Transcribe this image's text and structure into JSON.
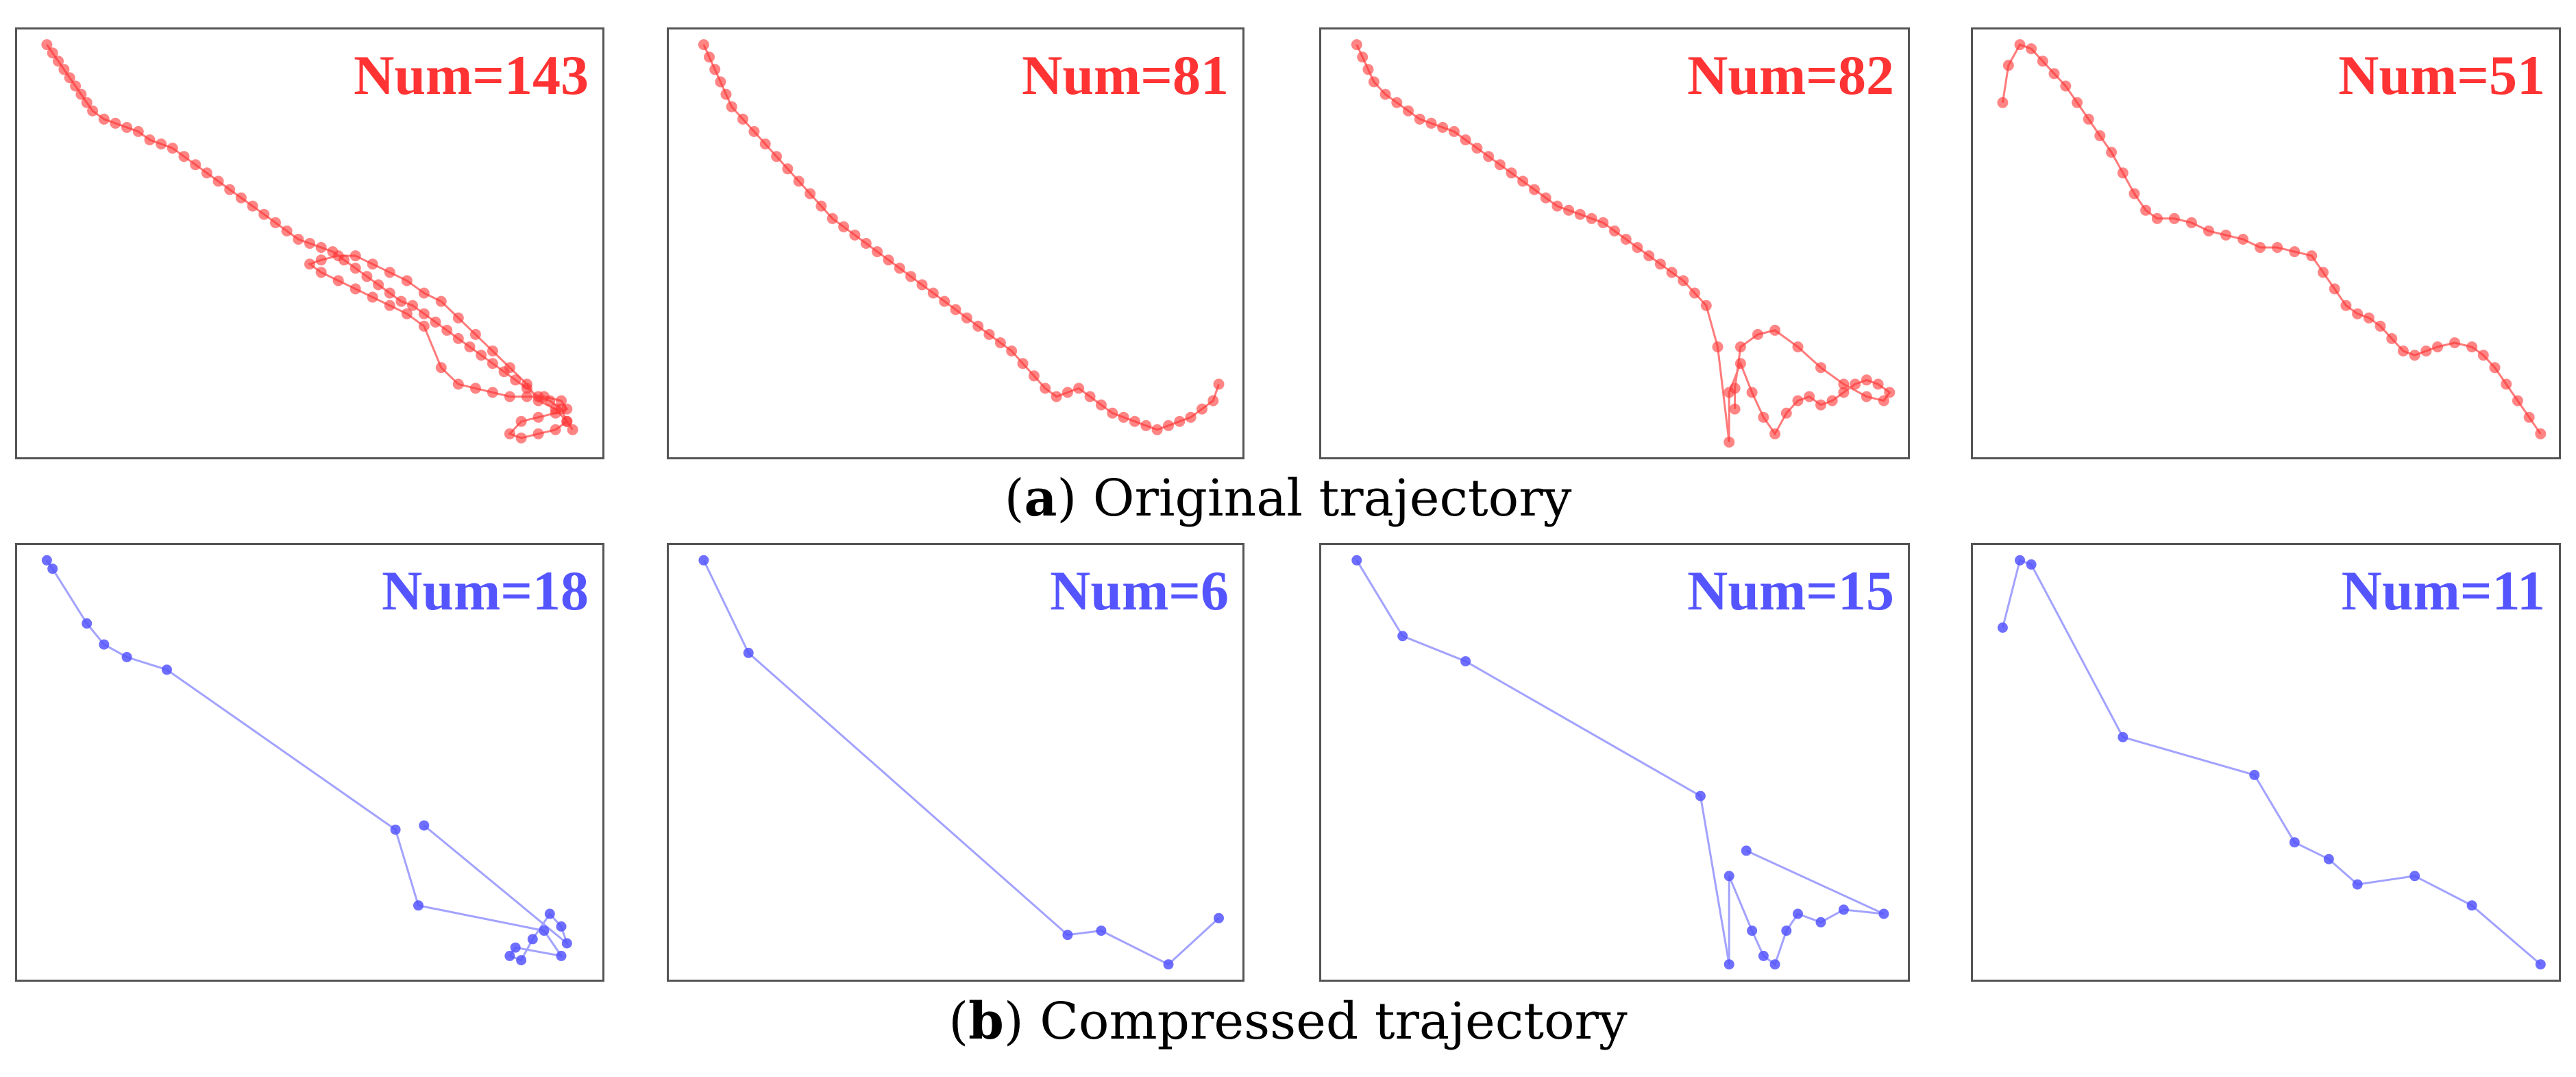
{
  "colors": {
    "original": "#ff3333",
    "compressed": "#5555ff"
  },
  "captions": {
    "original": {
      "letter": "a",
      "text": " Original trajectory"
    },
    "compressed": {
      "letter": "b",
      "text": " Compressed trajectory"
    }
  },
  "chart_data": [
    {
      "type": "line",
      "group": "original",
      "label": "Num=143",
      "x_range": [
        0,
        1
      ],
      "y_range": [
        0,
        1
      ],
      "grid": false,
      "points": [
        [
          0.04,
          0.02
        ],
        [
          0.05,
          0.04
        ],
        [
          0.06,
          0.06
        ],
        [
          0.07,
          0.08
        ],
        [
          0.08,
          0.1
        ],
        [
          0.09,
          0.12
        ],
        [
          0.1,
          0.14
        ],
        [
          0.11,
          0.16
        ],
        [
          0.12,
          0.18
        ],
        [
          0.14,
          0.2
        ],
        [
          0.16,
          0.21
        ],
        [
          0.18,
          0.22
        ],
        [
          0.2,
          0.23
        ],
        [
          0.22,
          0.25
        ],
        [
          0.24,
          0.26
        ],
        [
          0.26,
          0.27
        ],
        [
          0.28,
          0.29
        ],
        [
          0.3,
          0.31
        ],
        [
          0.32,
          0.33
        ],
        [
          0.34,
          0.35
        ],
        [
          0.36,
          0.37
        ],
        [
          0.38,
          0.39
        ],
        [
          0.4,
          0.41
        ],
        [
          0.42,
          0.43
        ],
        [
          0.44,
          0.45
        ],
        [
          0.46,
          0.47
        ],
        [
          0.48,
          0.49
        ],
        [
          0.5,
          0.5
        ],
        [
          0.52,
          0.51
        ],
        [
          0.54,
          0.52
        ],
        [
          0.56,
          0.54
        ],
        [
          0.58,
          0.56
        ],
        [
          0.6,
          0.58
        ],
        [
          0.62,
          0.6
        ],
        [
          0.64,
          0.62
        ],
        [
          0.66,
          0.64
        ],
        [
          0.68,
          0.65
        ],
        [
          0.7,
          0.67
        ],
        [
          0.72,
          0.69
        ],
        [
          0.74,
          0.71
        ],
        [
          0.76,
          0.73
        ],
        [
          0.78,
          0.75
        ],
        [
          0.8,
          0.77
        ],
        [
          0.82,
          0.79
        ],
        [
          0.84,
          0.81
        ],
        [
          0.86,
          0.83
        ],
        [
          0.88,
          0.85
        ],
        [
          0.9,
          0.87
        ],
        [
          0.92,
          0.88
        ],
        [
          0.94,
          0.9
        ],
        [
          0.95,
          0.93
        ],
        [
          0.93,
          0.95
        ],
        [
          0.9,
          0.96
        ],
        [
          0.87,
          0.97
        ],
        [
          0.85,
          0.96
        ],
        [
          0.87,
          0.93
        ],
        [
          0.9,
          0.92
        ],
        [
          0.93,
          0.91
        ],
        [
          0.95,
          0.9
        ],
        [
          0.94,
          0.88
        ],
        [
          0.91,
          0.87
        ],
        [
          0.88,
          0.87
        ],
        [
          0.85,
          0.87
        ],
        [
          0.82,
          0.86
        ],
        [
          0.79,
          0.85
        ],
        [
          0.76,
          0.84
        ],
        [
          0.73,
          0.8
        ],
        [
          0.7,
          0.7
        ],
        [
          0.67,
          0.67
        ],
        [
          0.64,
          0.65
        ],
        [
          0.61,
          0.63
        ],
        [
          0.58,
          0.61
        ],
        [
          0.55,
          0.59
        ],
        [
          0.52,
          0.57
        ],
        [
          0.5,
          0.55
        ],
        [
          0.52,
          0.54
        ],
        [
          0.55,
          0.53
        ],
        [
          0.58,
          0.53
        ],
        [
          0.61,
          0.55
        ],
        [
          0.64,
          0.57
        ],
        [
          0.67,
          0.59
        ],
        [
          0.7,
          0.62
        ],
        [
          0.73,
          0.64
        ],
        [
          0.76,
          0.68
        ],
        [
          0.79,
          0.72
        ],
        [
          0.82,
          0.76
        ],
        [
          0.85,
          0.8
        ],
        [
          0.88,
          0.84
        ],
        [
          0.9,
          0.88
        ],
        [
          0.93,
          0.9
        ],
        [
          0.95,
          0.93
        ],
        [
          0.96,
          0.95
        ]
      ]
    },
    {
      "type": "line",
      "group": "original",
      "label": "Num=81",
      "x_range": [
        0,
        1
      ],
      "y_range": [
        0,
        1
      ],
      "grid": false,
      "points": [
        [
          0.05,
          0.02
        ],
        [
          0.06,
          0.05
        ],
        [
          0.07,
          0.08
        ],
        [
          0.08,
          0.11
        ],
        [
          0.09,
          0.14
        ],
        [
          0.1,
          0.17
        ],
        [
          0.12,
          0.2
        ],
        [
          0.14,
          0.23
        ],
        [
          0.16,
          0.26
        ],
        [
          0.18,
          0.29
        ],
        [
          0.2,
          0.32
        ],
        [
          0.22,
          0.35
        ],
        [
          0.24,
          0.38
        ],
        [
          0.26,
          0.41
        ],
        [
          0.28,
          0.44
        ],
        [
          0.3,
          0.46
        ],
        [
          0.32,
          0.48
        ],
        [
          0.34,
          0.5
        ],
        [
          0.36,
          0.52
        ],
        [
          0.38,
          0.54
        ],
        [
          0.4,
          0.56
        ],
        [
          0.42,
          0.58
        ],
        [
          0.44,
          0.6
        ],
        [
          0.46,
          0.62
        ],
        [
          0.48,
          0.64
        ],
        [
          0.5,
          0.66
        ],
        [
          0.52,
          0.68
        ],
        [
          0.54,
          0.7
        ],
        [
          0.56,
          0.72
        ],
        [
          0.58,
          0.74
        ],
        [
          0.6,
          0.76
        ],
        [
          0.62,
          0.79
        ],
        [
          0.64,
          0.82
        ],
        [
          0.66,
          0.85
        ],
        [
          0.68,
          0.87
        ],
        [
          0.7,
          0.86
        ],
        [
          0.72,
          0.85
        ],
        [
          0.74,
          0.87
        ],
        [
          0.76,
          0.89
        ],
        [
          0.78,
          0.91
        ],
        [
          0.8,
          0.92
        ],
        [
          0.82,
          0.93
        ],
        [
          0.84,
          0.94
        ],
        [
          0.86,
          0.95
        ],
        [
          0.88,
          0.94
        ],
        [
          0.9,
          0.93
        ],
        [
          0.92,
          0.92
        ],
        [
          0.94,
          0.9
        ],
        [
          0.96,
          0.88
        ],
        [
          0.97,
          0.84
        ]
      ]
    },
    {
      "type": "line",
      "group": "original",
      "label": "Num=82",
      "x_range": [
        0,
        1
      ],
      "y_range": [
        0,
        1
      ],
      "grid": false,
      "points": [
        [
          0.05,
          0.02
        ],
        [
          0.06,
          0.05
        ],
        [
          0.07,
          0.08
        ],
        [
          0.08,
          0.11
        ],
        [
          0.1,
          0.14
        ],
        [
          0.12,
          0.16
        ],
        [
          0.14,
          0.18
        ],
        [
          0.16,
          0.2
        ],
        [
          0.18,
          0.21
        ],
        [
          0.2,
          0.22
        ],
        [
          0.22,
          0.23
        ],
        [
          0.24,
          0.25
        ],
        [
          0.26,
          0.27
        ],
        [
          0.28,
          0.29
        ],
        [
          0.3,
          0.31
        ],
        [
          0.32,
          0.33
        ],
        [
          0.34,
          0.35
        ],
        [
          0.36,
          0.37
        ],
        [
          0.38,
          0.39
        ],
        [
          0.4,
          0.41
        ],
        [
          0.42,
          0.42
        ],
        [
          0.44,
          0.43
        ],
        [
          0.46,
          0.44
        ],
        [
          0.48,
          0.45
        ],
        [
          0.5,
          0.47
        ],
        [
          0.52,
          0.49
        ],
        [
          0.54,
          0.51
        ],
        [
          0.56,
          0.53
        ],
        [
          0.58,
          0.55
        ],
        [
          0.6,
          0.57
        ],
        [
          0.62,
          0.59
        ],
        [
          0.64,
          0.62
        ],
        [
          0.66,
          0.65
        ],
        [
          0.68,
          0.75
        ],
        [
          0.7,
          0.98
        ],
        [
          0.7,
          0.86
        ],
        [
          0.72,
          0.79
        ],
        [
          0.74,
          0.86
        ],
        [
          0.76,
          0.92
        ],
        [
          0.78,
          0.96
        ],
        [
          0.8,
          0.91
        ],
        [
          0.82,
          0.88
        ],
        [
          0.84,
          0.87
        ],
        [
          0.86,
          0.89
        ],
        [
          0.88,
          0.88
        ],
        [
          0.9,
          0.86
        ],
        [
          0.92,
          0.84
        ],
        [
          0.94,
          0.83
        ],
        [
          0.96,
          0.84
        ],
        [
          0.98,
          0.86
        ],
        [
          0.97,
          0.88
        ],
        [
          0.94,
          0.87
        ],
        [
          0.9,
          0.84
        ],
        [
          0.86,
          0.8
        ],
        [
          0.82,
          0.75
        ],
        [
          0.78,
          0.71
        ],
        [
          0.75,
          0.72
        ],
        [
          0.72,
          0.75
        ],
        [
          0.71,
          0.85
        ],
        [
          0.71,
          0.9
        ]
      ]
    },
    {
      "type": "line",
      "group": "original",
      "label": "Num=51",
      "x_range": [
        0,
        1
      ],
      "y_range": [
        0,
        1
      ],
      "grid": false,
      "points": [
        [
          0.04,
          0.16
        ],
        [
          0.05,
          0.07
        ],
        [
          0.07,
          0.02
        ],
        [
          0.09,
          0.03
        ],
        [
          0.11,
          0.06
        ],
        [
          0.13,
          0.09
        ],
        [
          0.15,
          0.12
        ],
        [
          0.17,
          0.16
        ],
        [
          0.19,
          0.2
        ],
        [
          0.21,
          0.24
        ],
        [
          0.23,
          0.28
        ],
        [
          0.25,
          0.33
        ],
        [
          0.27,
          0.38
        ],
        [
          0.29,
          0.42
        ],
        [
          0.31,
          0.44
        ],
        [
          0.34,
          0.44
        ],
        [
          0.37,
          0.45
        ],
        [
          0.4,
          0.47
        ],
        [
          0.43,
          0.48
        ],
        [
          0.46,
          0.49
        ],
        [
          0.49,
          0.51
        ],
        [
          0.52,
          0.51
        ],
        [
          0.55,
          0.52
        ],
        [
          0.58,
          0.53
        ],
        [
          0.6,
          0.57
        ],
        [
          0.62,
          0.61
        ],
        [
          0.64,
          0.65
        ],
        [
          0.66,
          0.67
        ],
        [
          0.68,
          0.68
        ],
        [
          0.7,
          0.7
        ],
        [
          0.72,
          0.73
        ],
        [
          0.74,
          0.76
        ],
        [
          0.76,
          0.77
        ],
        [
          0.78,
          0.76
        ],
        [
          0.8,
          0.75
        ],
        [
          0.83,
          0.74
        ],
        [
          0.86,
          0.75
        ],
        [
          0.88,
          0.77
        ],
        [
          0.9,
          0.8
        ],
        [
          0.92,
          0.84
        ],
        [
          0.94,
          0.88
        ],
        [
          0.96,
          0.92
        ],
        [
          0.98,
          0.96
        ]
      ]
    },
    {
      "type": "line",
      "group": "compressed",
      "label": "Num=18",
      "x_range": [
        0,
        1
      ],
      "y_range": [
        0,
        1
      ],
      "grid": false,
      "points": [
        [
          0.04,
          0.02
        ],
        [
          0.05,
          0.04
        ],
        [
          0.11,
          0.17
        ],
        [
          0.14,
          0.22
        ],
        [
          0.18,
          0.25
        ],
        [
          0.25,
          0.28
        ],
        [
          0.65,
          0.66
        ],
        [
          0.69,
          0.84
        ],
        [
          0.91,
          0.9
        ],
        [
          0.94,
          0.96
        ],
        [
          0.86,
          0.94
        ],
        [
          0.85,
          0.96
        ],
        [
          0.87,
          0.97
        ],
        [
          0.89,
          0.92
        ],
        [
          0.92,
          0.86
        ],
        [
          0.94,
          0.89
        ],
        [
          0.95,
          0.93
        ],
        [
          0.7,
          0.65
        ]
      ]
    },
    {
      "type": "line",
      "group": "compressed",
      "label": "Num=6",
      "x_range": [
        0,
        1
      ],
      "y_range": [
        0,
        1
      ],
      "grid": false,
      "points": [
        [
          0.05,
          0.02
        ],
        [
          0.13,
          0.24
        ],
        [
          0.7,
          0.91
        ],
        [
          0.76,
          0.9
        ],
        [
          0.88,
          0.98
        ],
        [
          0.97,
          0.87
        ]
      ]
    },
    {
      "type": "line",
      "group": "compressed",
      "label": "Num=15",
      "x_range": [
        0,
        1
      ],
      "y_range": [
        0,
        1
      ],
      "grid": false,
      "points": [
        [
          0.05,
          0.02
        ],
        [
          0.13,
          0.2
        ],
        [
          0.24,
          0.26
        ],
        [
          0.65,
          0.58
        ],
        [
          0.7,
          0.98
        ],
        [
          0.7,
          0.77
        ],
        [
          0.74,
          0.9
        ],
        [
          0.76,
          0.96
        ],
        [
          0.78,
          0.98
        ],
        [
          0.8,
          0.9
        ],
        [
          0.82,
          0.86
        ],
        [
          0.86,
          0.88
        ],
        [
          0.9,
          0.85
        ],
        [
          0.97,
          0.86
        ],
        [
          0.73,
          0.71
        ]
      ]
    },
    {
      "type": "line",
      "group": "compressed",
      "label": "Num=11",
      "x_range": [
        0,
        1
      ],
      "y_range": [
        0,
        1
      ],
      "grid": false,
      "points": [
        [
          0.04,
          0.18
        ],
        [
          0.07,
          0.02
        ],
        [
          0.09,
          0.03
        ],
        [
          0.25,
          0.44
        ],
        [
          0.48,
          0.53
        ],
        [
          0.55,
          0.69
        ],
        [
          0.61,
          0.73
        ],
        [
          0.66,
          0.79
        ],
        [
          0.76,
          0.77
        ],
        [
          0.86,
          0.84
        ],
        [
          0.98,
          0.98
        ]
      ]
    }
  ]
}
